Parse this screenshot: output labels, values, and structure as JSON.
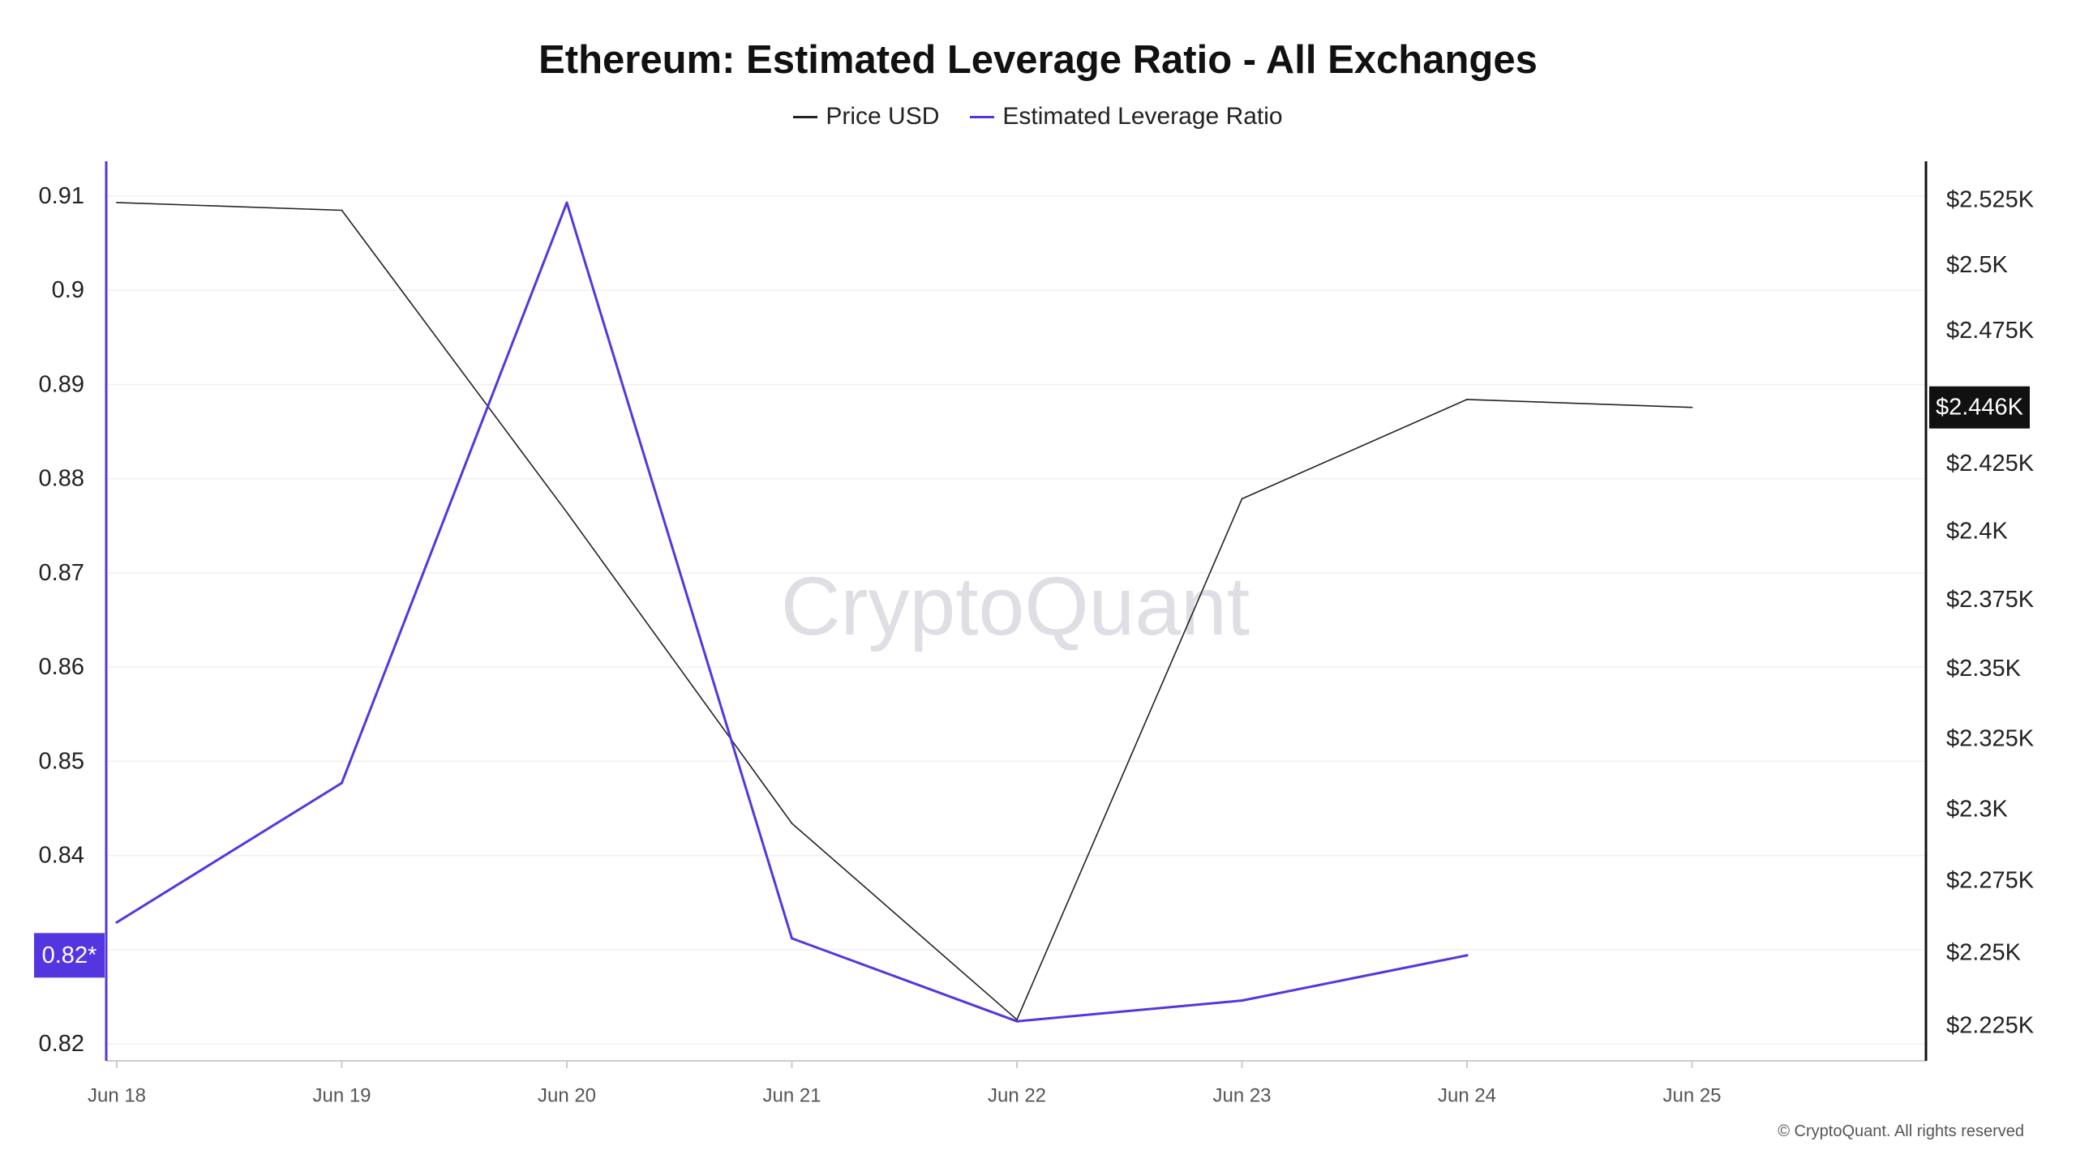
{
  "watermark": "CryptoQuant",
  "copyright": "© CryptoQuant. All rights reserved",
  "chart_data": {
    "type": "line",
    "title": "Ethereum: Estimated Leverage Ratio - All Exchanges",
    "legend_position": "top-center",
    "grid": true,
    "x": [
      "Jun 18",
      "Jun 19",
      "Jun 20",
      "Jun 21",
      "Jun 22",
      "Jun 23",
      "Jun 24",
      "Jun 25"
    ],
    "series": [
      {
        "name": "Price USD",
        "axis": "right",
        "color": "#222222",
        "values": [
          2524,
          2521,
          2407,
          2295,
          2227,
          2412,
          2449,
          2446
        ]
      },
      {
        "name": "Estimated Leverage Ratio",
        "axis": "left",
        "color": "#5436e0",
        "values": [
          0.8329,
          0.8477,
          0.9093,
          0.8312,
          0.8224,
          0.8246,
          0.8294,
          null
        ]
      }
    ],
    "y_left": {
      "scale": "linear",
      "range": [
        0.8182,
        0.9137
      ],
      "color": "#5436e0",
      "current_label": "0.82*",
      "ticks": [
        {
          "value": 0.91,
          "label": "0.91"
        },
        {
          "value": 0.9,
          "label": "0.9"
        },
        {
          "value": 0.89,
          "label": "0.89"
        },
        {
          "value": 0.88,
          "label": "0.88"
        },
        {
          "value": 0.87,
          "label": "0.87"
        },
        {
          "value": 0.86,
          "label": "0.86"
        },
        {
          "value": 0.85,
          "label": "0.85"
        },
        {
          "value": 0.84,
          "label": "0.84"
        },
        {
          "value": 0.83
        },
        {
          "value": 0.82,
          "label": "0.82"
        }
      ]
    },
    "y_right": {
      "scale": "log",
      "range": [
        2213,
        2540
      ],
      "color": "#111111",
      "current_label": "$2.446K",
      "ticks": [
        {
          "value": 2525,
          "label": "$2.525K"
        },
        {
          "value": 2500,
          "label": "$2.5K"
        },
        {
          "value": 2475,
          "label": "$2.475K"
        },
        {
          "value": 2425,
          "label": "$2.425K"
        },
        {
          "value": 2400,
          "label": "$2.4K"
        },
        {
          "value": 2375,
          "label": "$2.375K"
        },
        {
          "value": 2350,
          "label": "$2.35K"
        },
        {
          "value": 2325,
          "label": "$2.325K"
        },
        {
          "value": 2300,
          "label": "$2.3K"
        },
        {
          "value": 2275,
          "label": "$2.275K"
        },
        {
          "value": 2250,
          "label": "$2.25K"
        },
        {
          "value": 2225,
          "label": "$2.225K"
        }
      ]
    }
  }
}
